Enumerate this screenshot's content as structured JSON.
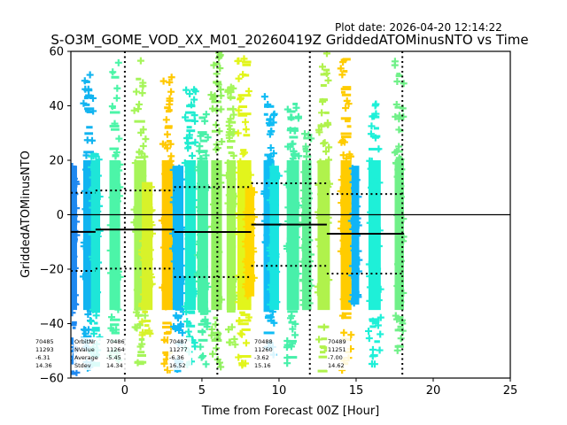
{
  "chart_data": {
    "type": "scatter",
    "title": "S-O3M_GOME_VOD_XX_M01_20260419Z GriddedATOMinusNTO vs Time",
    "subtitle": "Plot date: 2026-04-20 12:14:22",
    "xlabel": "Time from Forecast 00Z [Hour]",
    "ylabel": "GriddedATOMinusNTO",
    "xlim": [
      -3.5,
      25
    ],
    "ylim": [
      -60,
      60
    ],
    "xticks": [
      0,
      5,
      10,
      15,
      20,
      25
    ],
    "yticks": [
      -60,
      -40,
      -20,
      0,
      20,
      40,
      60
    ],
    "grid": false,
    "zero_line": 0,
    "forecast_boundaries": [
      0,
      6,
      12,
      18
    ],
    "orbit_stats_labels": [
      "OrbitNr",
      "NValue",
      "Average",
      "Stdev"
    ],
    "orbits": [
      {
        "orbit": "70485",
        "nvalue": "11293",
        "average": "-6.31",
        "stdev": "14.36",
        "mean": -6.31,
        "sd": 14.36,
        "x_range": [
          -3.5,
          -1.9
        ],
        "label_x": -3.4,
        "show_header": false
      },
      {
        "orbit": "70486",
        "nvalue": "11264",
        "average": "-5.45",
        "stdev": "14.34",
        "mean": -5.45,
        "sd": 14.34,
        "x_range": [
          -1.9,
          3.2
        ],
        "label_x": -3.0,
        "show_header": true
      },
      {
        "orbit": "70487",
        "nvalue": "11277",
        "average": "-6.36",
        "stdev": "16.52",
        "mean": -6.36,
        "sd": 16.52,
        "x_range": [
          3.2,
          8.2
        ],
        "label_x": 3.1,
        "show_header": false
      },
      {
        "orbit": "70488",
        "nvalue": "11260",
        "average": "-3.62",
        "stdev": "15.16",
        "mean": -3.62,
        "sd": 15.16,
        "x_range": [
          8.2,
          13.1
        ],
        "label_x": 8.1,
        "show_header": false
      },
      {
        "orbit": "70489",
        "nvalue": "11251",
        "average": "-7.00",
        "stdev": "14.62",
        "mean": -7.0,
        "sd": 14.62,
        "x_range": [
          13.1,
          18.1
        ],
        "label_x": 13.0,
        "show_header": false
      }
    ],
    "strips": [
      {
        "x0": -3.5,
        "x1": -3.1,
        "ymin": -58,
        "ymax": 18,
        "color": "#1e88f0"
      },
      {
        "x0": -2.7,
        "x1": -2.0,
        "ymin": -57,
        "ymax": 52,
        "color": "#12b4f0"
      },
      {
        "x0": -2.2,
        "x1": -1.6,
        "ymin": -55,
        "ymax": 25,
        "color": "#1ee6d8"
      },
      {
        "x0": -1.0,
        "x1": -0.3,
        "ymin": -56,
        "ymax": 58,
        "color": "#4cf5a8"
      },
      {
        "x0": 0.6,
        "x1": 1.4,
        "ymin": -55,
        "ymax": 57,
        "color": "#a6f55a"
      },
      {
        "x0": 1.1,
        "x1": 1.8,
        "ymin": -45,
        "ymax": 12,
        "color": "#d8f22a"
      },
      {
        "x0": 2.4,
        "x1": 3.1,
        "ymin": -57,
        "ymax": 55,
        "color": "#ffc800"
      },
      {
        "x0": 3.1,
        "x1": 3.8,
        "ymin": -57,
        "ymax": 18,
        "color": "#10b8f4"
      },
      {
        "x0": 3.9,
        "x1": 4.6,
        "ymin": -57,
        "ymax": 48,
        "color": "#20ecd0"
      },
      {
        "x0": 4.7,
        "x1": 5.4,
        "ymin": -56,
        "ymax": 38,
        "color": "#48f0a8"
      },
      {
        "x0": 5.6,
        "x1": 6.3,
        "ymin": -57,
        "ymax": 60,
        "color": "#90f060"
      },
      {
        "x0": 6.6,
        "x1": 7.2,
        "ymin": -50,
        "ymax": 55,
        "color": "#a4f65a"
      },
      {
        "x0": 7.3,
        "x1": 8.2,
        "ymin": -57,
        "ymax": 60,
        "color": "#e2f51c"
      },
      {
        "x0": 7.8,
        "x1": 8.4,
        "ymin": -30,
        "ymax": 10,
        "color": "#ffd800"
      },
      {
        "x0": 9.0,
        "x1": 9.7,
        "ymin": -52,
        "ymax": 44,
        "color": "#10bcf4"
      },
      {
        "x0": 9.4,
        "x1": 10.0,
        "ymin": -35,
        "ymax": 18,
        "color": "#18e4e0"
      },
      {
        "x0": 10.5,
        "x1": 11.3,
        "ymin": -57,
        "ymax": 42,
        "color": "#48f0aa"
      },
      {
        "x0": 11.5,
        "x1": 12.1,
        "ymin": -35,
        "ymax": 30,
        "color": "#60f095"
      },
      {
        "x0": 12.5,
        "x1": 13.3,
        "ymin": -57,
        "ymax": 60,
        "color": "#b0f24c"
      },
      {
        "x0": 14.0,
        "x1": 14.7,
        "ymin": -58,
        "ymax": 59,
        "color": "#ffcc00"
      },
      {
        "x0": 14.7,
        "x1": 15.2,
        "ymin": -33,
        "ymax": 18,
        "color": "#10b4f6"
      },
      {
        "x0": 15.8,
        "x1": 16.6,
        "ymin": -57,
        "ymax": 42,
        "color": "#1ef0d8"
      },
      {
        "x0": 17.5,
        "x1": 18.1,
        "ymin": -50,
        "ymax": 59,
        "color": "#70f088"
      }
    ]
  }
}
